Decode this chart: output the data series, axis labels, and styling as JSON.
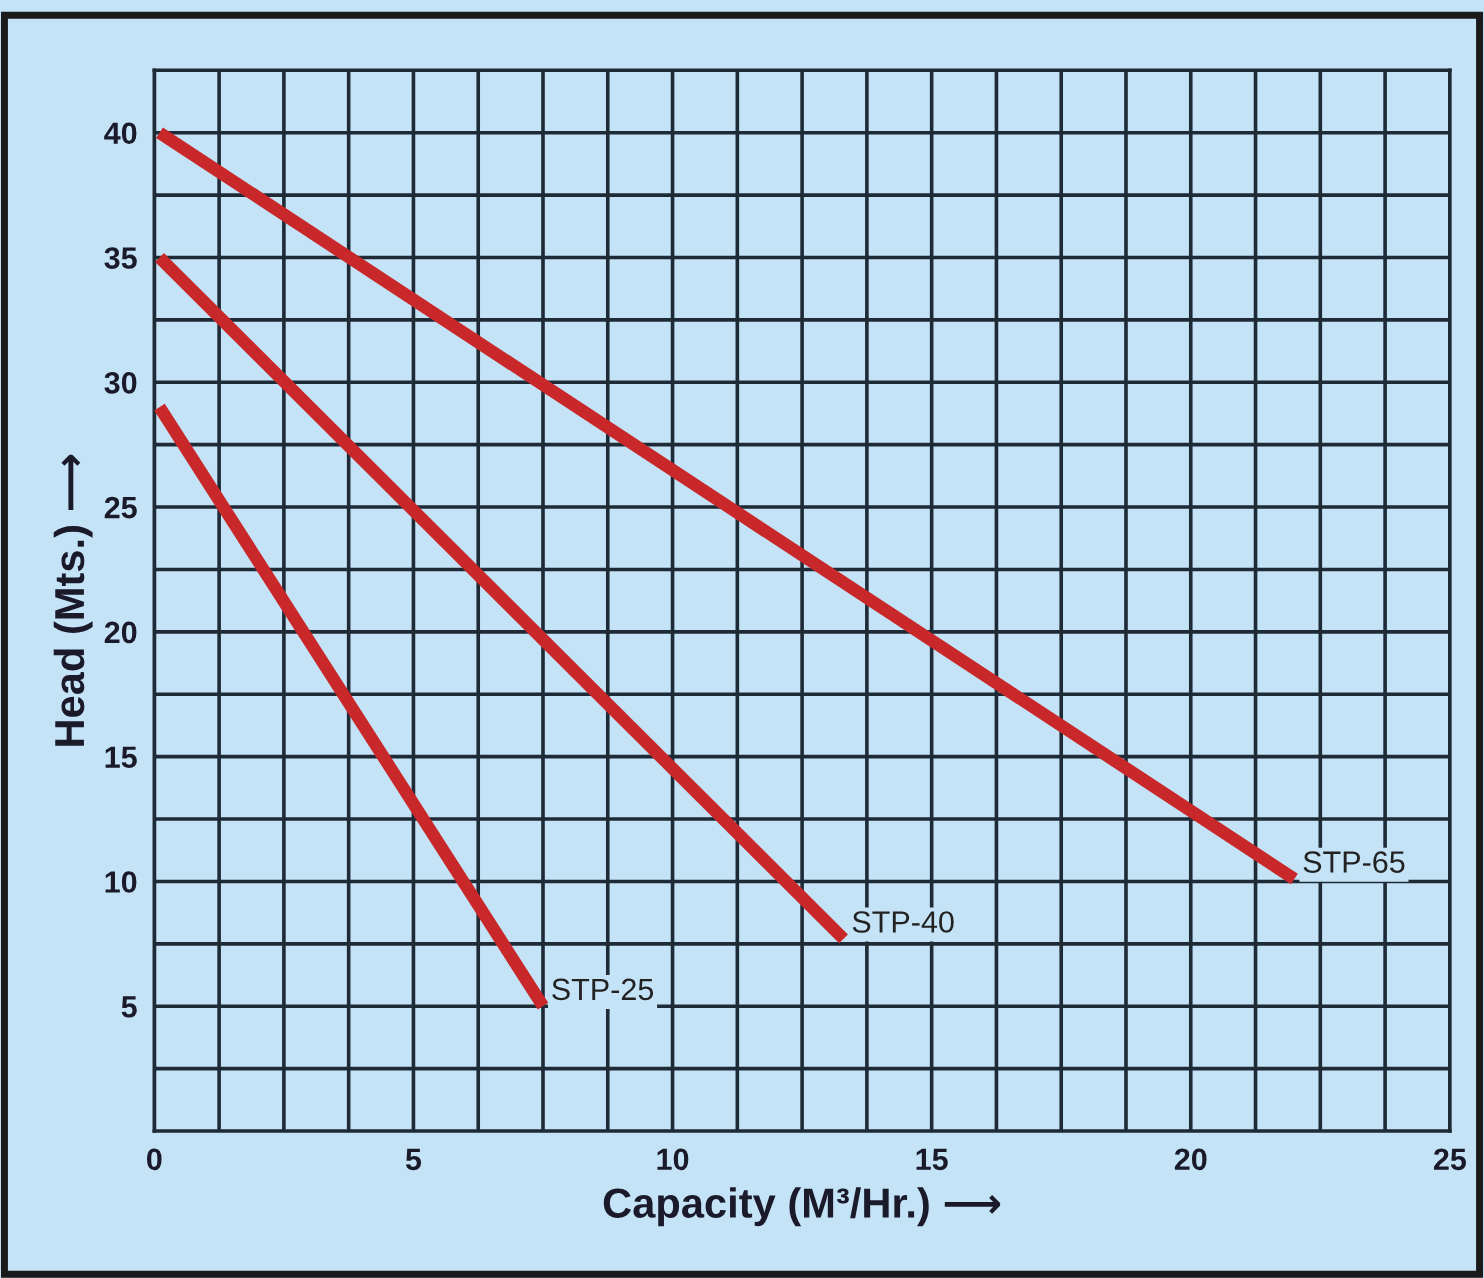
{
  "chart_data": {
    "type": "line",
    "xlabel": "Capacity (M³/Hr.) ⟶",
    "ylabel": "Head (Mts.) ⟶",
    "xlim": [
      0,
      25
    ],
    "ylim": [
      0,
      42.5
    ],
    "xticks": [
      0,
      {
        "value": 1.25,
        "label": null
      },
      {
        "value": 2.5,
        "label": null
      },
      {
        "value": 3.75,
        "label": null
      },
      5,
      {
        "value": 6.25,
        "label": null
      },
      {
        "value": 7.5,
        "label": null
      },
      {
        "value": 8.75,
        "label": null
      },
      10,
      {
        "value": 11.25,
        "label": null
      },
      {
        "value": 12.5,
        "label": null
      },
      {
        "value": 13.75,
        "label": null
      },
      15,
      {
        "value": 16.25,
        "label": null
      },
      {
        "value": 17.5,
        "label": null
      },
      {
        "value": 18.75,
        "label": null
      },
      20,
      {
        "value": 21.25,
        "label": null
      },
      {
        "value": 22.5,
        "label": null
      },
      {
        "value": 23.75,
        "label": null
      },
      25
    ],
    "yticks": [
      {
        "value": 2.5,
        "label": null
      },
      5,
      {
        "value": 7.5,
        "label": null
      },
      10,
      {
        "value": 12.5,
        "label": null
      },
      15,
      {
        "value": 17.5,
        "label": null
      },
      20,
      {
        "value": 22.5,
        "label": null
      },
      25,
      {
        "value": 27.5,
        "label": null
      },
      30,
      {
        "value": 32.5,
        "label": null
      },
      35,
      {
        "value": 37.5,
        "label": null
      },
      40,
      {
        "value": 42.5,
        "label": null
      }
    ],
    "grid": true,
    "legend": false,
    "marker": "none",
    "line_style": "solid",
    "series": [
      {
        "name": "STP-65",
        "color": "#c8282a",
        "x": [
          0.1,
          22.0
        ],
        "values": [
          40,
          10.1
        ]
      },
      {
        "name": "STP-40",
        "color": "#c8282a",
        "x": [
          0.1,
          13.3
        ],
        "values": [
          35,
          7.7
        ]
      },
      {
        "name": "STP-25",
        "color": "#c8282a",
        "x": [
          0.1,
          7.5
        ],
        "values": [
          29,
          5
        ]
      }
    ]
  }
}
